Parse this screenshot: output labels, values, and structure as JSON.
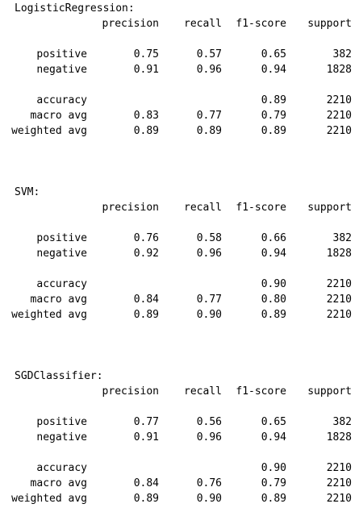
{
  "header": {
    "precision": "precision",
    "recall": "recall",
    "f1": "f1-score",
    "support": "support"
  },
  "reports": [
    {
      "title": "LogisticRegression:",
      "classes": [
        {
          "label": "positive",
          "precision": "0.75",
          "recall": "0.57",
          "f1": "0.65",
          "support": "382"
        },
        {
          "label": "negative",
          "precision": "0.91",
          "recall": "0.96",
          "f1": "0.94",
          "support": "1828"
        }
      ],
      "summary": [
        {
          "label": "accuracy",
          "precision": "",
          "recall": "",
          "f1": "0.89",
          "support": "2210"
        },
        {
          "label": "macro avg",
          "precision": "0.83",
          "recall": "0.77",
          "f1": "0.79",
          "support": "2210"
        },
        {
          "label": "weighted avg",
          "precision": "0.89",
          "recall": "0.89",
          "f1": "0.89",
          "support": "2210"
        }
      ]
    },
    {
      "title": "SVM:",
      "classes": [
        {
          "label": "positive",
          "precision": "0.76",
          "recall": "0.58",
          "f1": "0.66",
          "support": "382"
        },
        {
          "label": "negative",
          "precision": "0.92",
          "recall": "0.96",
          "f1": "0.94",
          "support": "1828"
        }
      ],
      "summary": [
        {
          "label": "accuracy",
          "precision": "",
          "recall": "",
          "f1": "0.90",
          "support": "2210"
        },
        {
          "label": "macro avg",
          "precision": "0.84",
          "recall": "0.77",
          "f1": "0.80",
          "support": "2210"
        },
        {
          "label": "weighted avg",
          "precision": "0.89",
          "recall": "0.90",
          "f1": "0.89",
          "support": "2210"
        }
      ]
    },
    {
      "title": "SGDClassifier:",
      "classes": [
        {
          "label": "positive",
          "precision": "0.77",
          "recall": "0.56",
          "f1": "0.65",
          "support": "382"
        },
        {
          "label": "negative",
          "precision": "0.91",
          "recall": "0.96",
          "f1": "0.94",
          "support": "1828"
        }
      ],
      "summary": [
        {
          "label": "accuracy",
          "precision": "",
          "recall": "",
          "f1": "0.90",
          "support": "2210"
        },
        {
          "label": "macro avg",
          "precision": "0.84",
          "recall": "0.76",
          "f1": "0.79",
          "support": "2210"
        },
        {
          "label": "weighted avg",
          "precision": "0.89",
          "recall": "0.90",
          "f1": "0.89",
          "support": "2210"
        }
      ]
    }
  ]
}
